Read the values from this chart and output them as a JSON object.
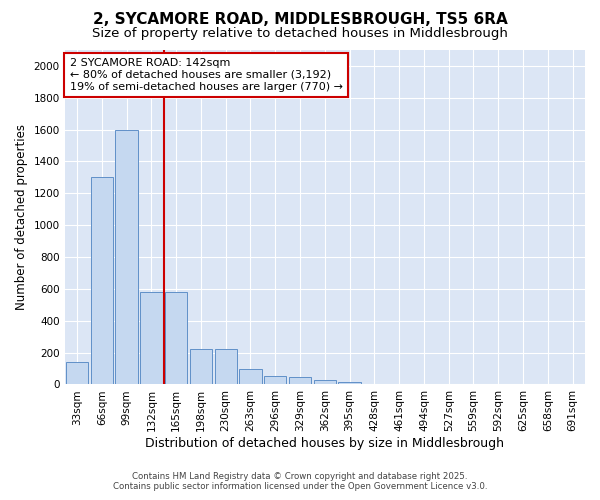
{
  "title": "2, SYCAMORE ROAD, MIDDLESBROUGH, TS5 6RA",
  "subtitle": "Size of property relative to detached houses in Middlesbrough",
  "xlabel": "Distribution of detached houses by size in Middlesbrough",
  "ylabel": "Number of detached properties",
  "categories": [
    "33sqm",
    "66sqm",
    "99sqm",
    "132sqm",
    "165sqm",
    "198sqm",
    "230sqm",
    "263sqm",
    "296sqm",
    "329sqm",
    "362sqm",
    "395sqm",
    "428sqm",
    "461sqm",
    "494sqm",
    "527sqm",
    "559sqm",
    "592sqm",
    "625sqm",
    "658sqm",
    "691sqm"
  ],
  "values": [
    140,
    1300,
    1600,
    580,
    580,
    220,
    220,
    100,
    55,
    45,
    28,
    18,
    5,
    2,
    1,
    1,
    0,
    0,
    0,
    0,
    0
  ],
  "bar_color": "#c5d8f0",
  "bar_edge_color": "#6090c8",
  "red_line_index": 3,
  "annotation_text": "2 SYCAMORE ROAD: 142sqm\n← 80% of detached houses are smaller (3,192)\n19% of semi-detached houses are larger (770) →",
  "annotation_box_color": "#ffffff",
  "annotation_box_edge": "#cc0000",
  "ylim": [
    0,
    2100
  ],
  "yticks": [
    0,
    200,
    400,
    600,
    800,
    1000,
    1200,
    1400,
    1600,
    1800,
    2000
  ],
  "background_color": "#dce6f5",
  "grid_color": "#ffffff",
  "fig_background": "#ffffff",
  "footer_line1": "Contains HM Land Registry data © Crown copyright and database right 2025.",
  "footer_line2": "Contains public sector information licensed under the Open Government Licence v3.0.",
  "title_fontsize": 11,
  "subtitle_fontsize": 9.5,
  "tick_fontsize": 7.5,
  "ylabel_fontsize": 8.5,
  "xlabel_fontsize": 9,
  "annot_fontsize": 8
}
